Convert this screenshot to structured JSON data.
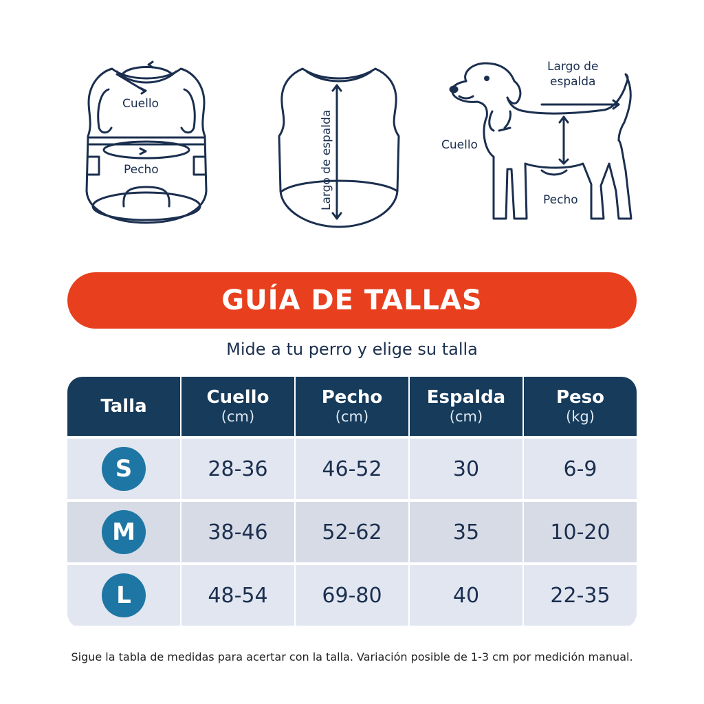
{
  "illustrations": {
    "front_vest": {
      "neck_label": "Cuello",
      "chest_label": "Pecho"
    },
    "back_vest": {
      "back_label": "Largo de espalda"
    },
    "dog": {
      "back_label_line1": "Largo de",
      "back_label_line2": "espalda",
      "neck_label": "Cuello",
      "chest_label": "Pecho"
    }
  },
  "banner": {
    "title": "GUÍA DE TALLAS"
  },
  "subtitle": "Mide a tu perro y elige su talla",
  "table": {
    "headers": [
      {
        "name": "Talla",
        "unit": ""
      },
      {
        "name": "Cuello",
        "unit": "(cm)"
      },
      {
        "name": "Pecho",
        "unit": "(cm)"
      },
      {
        "name": "Espalda",
        "unit": "(cm)"
      },
      {
        "name": "Peso",
        "unit": "(kg)"
      }
    ],
    "rows": [
      {
        "size": "S",
        "neck": "28-36",
        "chest": "46-52",
        "back": "30",
        "weight": "6-9"
      },
      {
        "size": "M",
        "neck": "38-46",
        "chest": "52-62",
        "back": "35",
        "weight": "10-20"
      },
      {
        "size": "L",
        "neck": "48-54",
        "chest": "69-80",
        "back": "40",
        "weight": "22-35"
      }
    ]
  },
  "footnote": "Sigue la tabla de medidas para acertar con la talla. Variación posible de 1-3 cm por medición manual.",
  "colors": {
    "navy": "#163b5b",
    "accent_orange": "#e8401f",
    "badge_blue": "#1e76a4",
    "row_light": "#e1e6f0",
    "row_dark": "#d6dbe5"
  }
}
